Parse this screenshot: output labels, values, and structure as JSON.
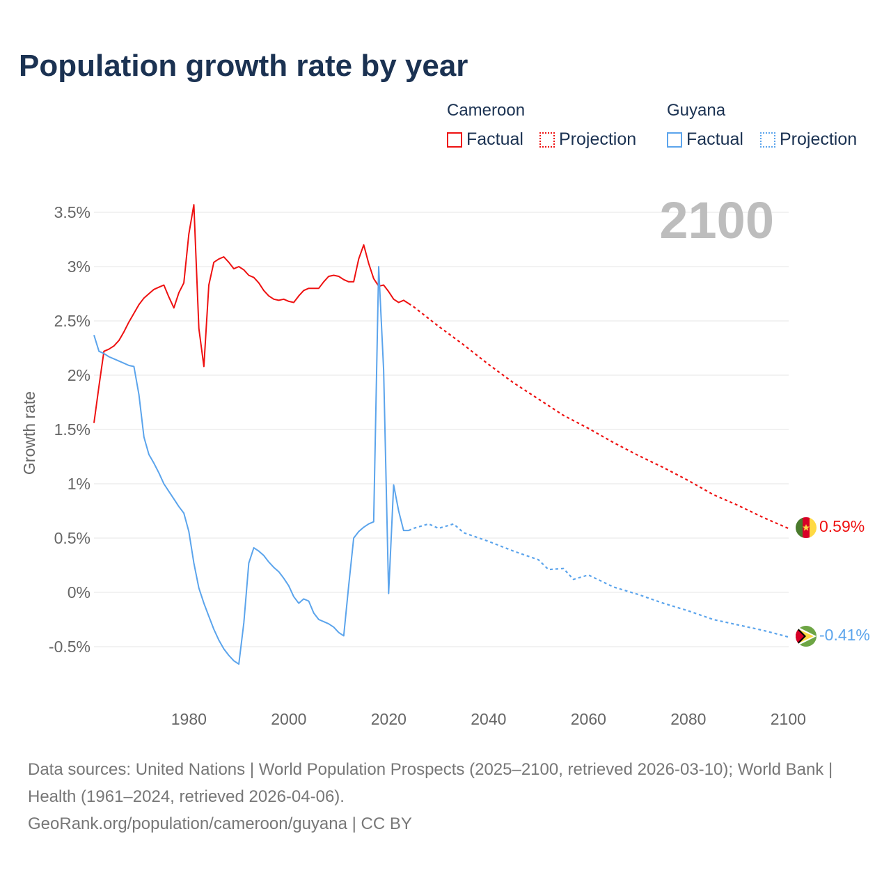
{
  "chart_data": {
    "type": "line",
    "title": "Population growth rate by year",
    "ylabel": "Growth rate",
    "xlabel": "",
    "xlim": [
      1961,
      2100
    ],
    "ylim": [
      -0.5,
      3.5
    ],
    "grid": true,
    "year_badge": "2100",
    "x_ticks": [
      1980,
      2000,
      2020,
      2040,
      2060,
      2080,
      2100
    ],
    "x_tick_labels": [
      "1980",
      "2000",
      "2020",
      "2040",
      "2060",
      "2080",
      "2100"
    ],
    "y_ticks": [
      -0.5,
      0,
      0.5,
      1,
      1.5,
      2,
      2.5,
      3,
      3.5
    ],
    "y_tick_labels": [
      "-0.5%",
      "0%",
      "0.5%",
      "1%",
      "1.5%",
      "2%",
      "2.5%",
      "3%",
      "3.5%"
    ],
    "legend": {
      "placement": "top-right",
      "groups": [
        {
          "country": "Cameroon",
          "factual": "Factual",
          "projection": "Projection"
        },
        {
          "country": "Guyana",
          "factual": "Factual",
          "projection": "Projection"
        }
      ]
    },
    "series": [
      {
        "name": "Cameroon",
        "color": "#ee1111",
        "end_label": "0.59%",
        "factual": {
          "x": [
            1961,
            1962,
            1963,
            1964,
            1965,
            1966,
            1967,
            1968,
            1969,
            1970,
            1971,
            1972,
            1973,
            1974,
            1975,
            1976,
            1977,
            1978,
            1979,
            1980,
            1981,
            1982,
            1983,
            1984,
            1985,
            1986,
            1987,
            1988,
            1989,
            1990,
            1991,
            1992,
            1993,
            1994,
            1995,
            1996,
            1997,
            1998,
            1999,
            2000,
            2001,
            2002,
            2003,
            2004,
            2005,
            2006,
            2007,
            2008,
            2009,
            2010,
            2011,
            2012,
            2013,
            2014,
            2015,
            2016,
            2017,
            2018,
            2019,
            2020,
            2021,
            2022,
            2023,
            2024
          ],
          "values": [
            1.56,
            1.9,
            2.22,
            2.24,
            2.27,
            2.32,
            2.4,
            2.49,
            2.57,
            2.65,
            2.71,
            2.75,
            2.79,
            2.81,
            2.83,
            2.72,
            2.62,
            2.76,
            2.85,
            3.3,
            3.57,
            2.43,
            2.08,
            2.83,
            3.04,
            3.07,
            3.09,
            3.04,
            2.98,
            3.0,
            2.97,
            2.92,
            2.9,
            2.85,
            2.78,
            2.73,
            2.7,
            2.69,
            2.7,
            2.68,
            2.67,
            2.73,
            2.78,
            2.8,
            2.8,
            2.8,
            2.86,
            2.91,
            2.92,
            2.91,
            2.88,
            2.86,
            2.86,
            3.07,
            3.2,
            3.03,
            2.89,
            2.82,
            2.83,
            2.77,
            2.7,
            2.67,
            2.69,
            2.66
          ]
        },
        "projection": {
          "x": [
            2024,
            2025,
            2030,
            2035,
            2040,
            2045,
            2050,
            2055,
            2060,
            2065,
            2070,
            2075,
            2080,
            2085,
            2090,
            2095,
            2100
          ],
          "values": [
            2.66,
            2.63,
            2.45,
            2.28,
            2.1,
            1.93,
            1.78,
            1.63,
            1.51,
            1.38,
            1.26,
            1.15,
            1.03,
            0.9,
            0.8,
            0.69,
            0.59
          ]
        }
      },
      {
        "name": "Guyana",
        "color": "#5ba4ec",
        "end_label": "-0.41%",
        "factual": {
          "x": [
            1961,
            1962,
            1963,
            1964,
            1965,
            1966,
            1967,
            1968,
            1969,
            1970,
            1971,
            1972,
            1973,
            1974,
            1975,
            1976,
            1977,
            1978,
            1979,
            1980,
            1981,
            1982,
            1983,
            1984,
            1985,
            1986,
            1987,
            1988,
            1989,
            1990,
            1991,
            1992,
            1993,
            1994,
            1995,
            1996,
            1997,
            1998,
            1999,
            2000,
            2001,
            2002,
            2003,
            2004,
            2005,
            2006,
            2007,
            2008,
            2009,
            2010,
            2011,
            2012,
            2013,
            2014,
            2015,
            2016,
            2017,
            2018,
            2019,
            2020,
            2021,
            2022,
            2023,
            2024
          ],
          "values": [
            2.37,
            2.22,
            2.2,
            2.17,
            2.15,
            2.13,
            2.11,
            2.09,
            2.08,
            1.82,
            1.43,
            1.27,
            1.19,
            1.1,
            1.0,
            0.93,
            0.86,
            0.79,
            0.73,
            0.56,
            0.27,
            0.04,
            -0.1,
            -0.22,
            -0.34,
            -0.44,
            -0.52,
            -0.58,
            -0.63,
            -0.66,
            -0.28,
            0.27,
            0.41,
            0.38,
            0.34,
            0.28,
            0.23,
            0.19,
            0.13,
            0.06,
            -0.04,
            -0.1,
            -0.06,
            -0.08,
            -0.19,
            -0.25,
            -0.27,
            -0.29,
            -0.32,
            -0.37,
            -0.4,
            0.06,
            0.5,
            0.56,
            0.6,
            0.63,
            0.65,
            3.0,
            2.05,
            -0.01,
            0.99,
            0.75,
            0.57,
            0.57
          ]
        },
        "projection": {
          "x": [
            2024,
            2025,
            2028,
            2030,
            2033,
            2035,
            2040,
            2045,
            2050,
            2052,
            2055,
            2057,
            2060,
            2065,
            2070,
            2075,
            2080,
            2085,
            2090,
            2095,
            2100
          ],
          "values": [
            0.57,
            0.59,
            0.63,
            0.59,
            0.63,
            0.55,
            0.47,
            0.38,
            0.3,
            0.21,
            0.22,
            0.12,
            0.16,
            0.05,
            -0.02,
            -0.1,
            -0.17,
            -0.25,
            -0.3,
            -0.35,
            -0.41
          ]
        }
      }
    ]
  },
  "footer": {
    "sources": "Data sources: United Nations | World Population Prospects (2025–2100, retrieved 2026-03-10); World Bank | Health (1961–2024, retrieved 2026-04-06).",
    "attribution": "GeoRank.org/population/cameroon/guyana | CC BY"
  }
}
